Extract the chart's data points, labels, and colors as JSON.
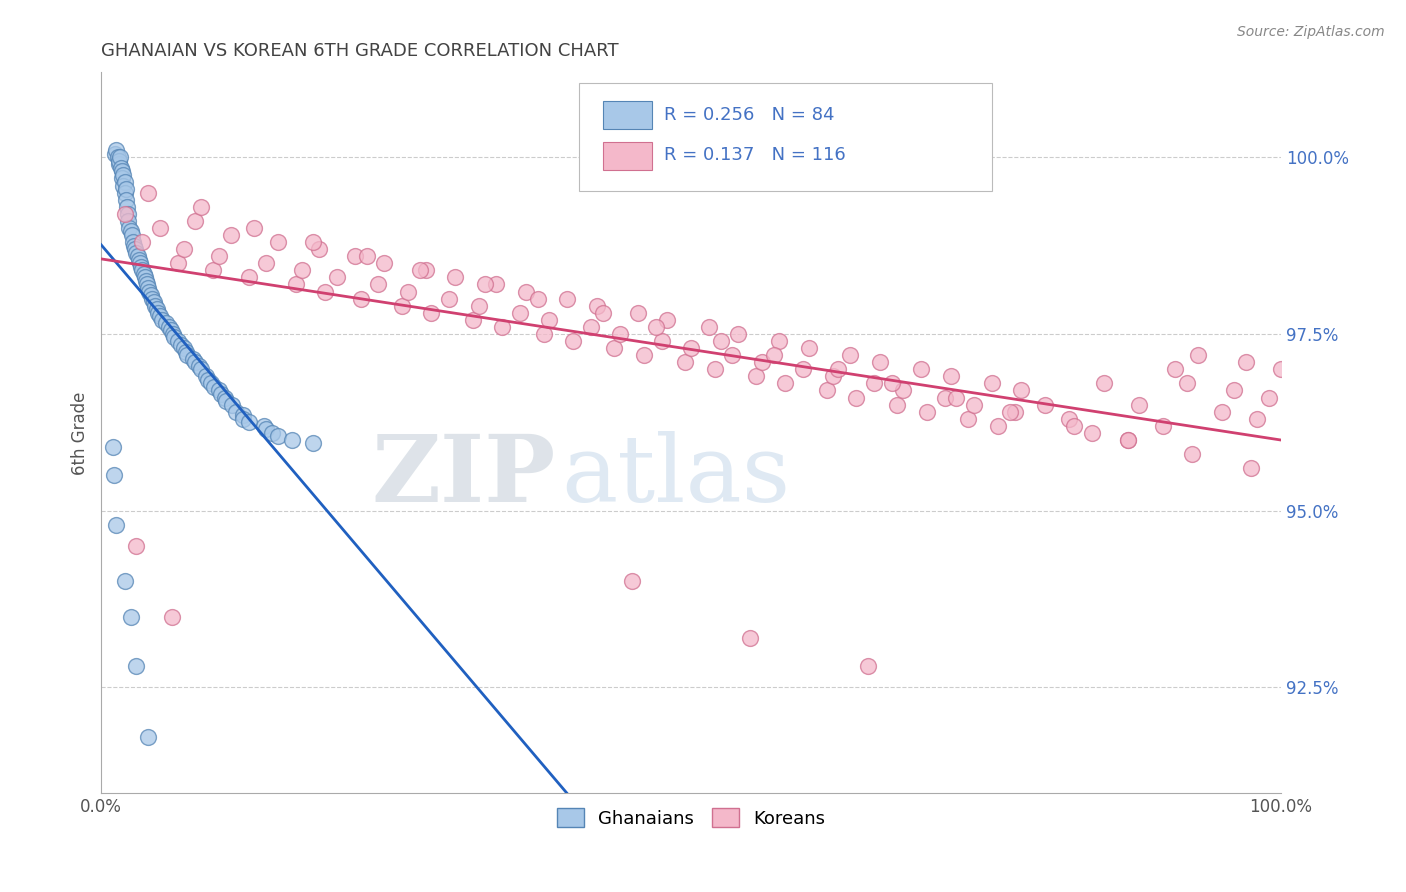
{
  "title": "GHANAIAN VS KOREAN 6TH GRADE CORRELATION CHART",
  "source": "Source: ZipAtlas.com",
  "ylabel": "6th Grade",
  "ytick_labels": [
    "92.5%",
    "95.0%",
    "97.5%",
    "100.0%"
  ],
  "ytick_values": [
    92.5,
    95.0,
    97.5,
    100.0
  ],
  "ymin": 91.0,
  "ymax": 101.2,
  "xmin": 0.0,
  "xmax": 100.0,
  "ghanaian_color": "#a8c8e8",
  "ghanaian_edge": "#5585b5",
  "korean_color": "#f4b8ca",
  "korean_edge": "#d07090",
  "ghanaian_R": 0.256,
  "ghanaian_N": 84,
  "korean_R": 0.137,
  "korean_N": 116,
  "legend_ghanaian": "Ghanaians",
  "legend_korean": "Koreans",
  "watermark_zip": "ZIP",
  "watermark_atlas": "atlas",
  "title_color": "#434343",
  "title_fontsize": 13,
  "ghanaian_x": [
    1.2,
    1.3,
    1.4,
    1.5,
    1.5,
    1.6,
    1.7,
    1.8,
    1.8,
    1.9,
    1.9,
    2.0,
    2.0,
    2.1,
    2.1,
    2.2,
    2.3,
    2.3,
    2.4,
    2.5,
    2.6,
    2.7,
    2.8,
    2.9,
    3.0,
    3.1,
    3.2,
    3.3,
    3.4,
    3.5,
    3.6,
    3.7,
    3.8,
    3.9,
    4.0,
    4.1,
    4.2,
    4.3,
    4.5,
    4.6,
    4.7,
    4.8,
    5.0,
    5.2,
    5.5,
    5.8,
    5.9,
    6.1,
    6.2,
    6.5,
    6.8,
    7.0,
    7.2,
    7.3,
    7.8,
    8.0,
    8.3,
    8.5,
    8.9,
    9.1,
    9.3,
    9.6,
    10.0,
    10.2,
    10.5,
    10.6,
    11.1,
    11.4,
    12.0,
    12.0,
    12.5,
    13.8,
    14.0,
    14.5,
    15.0,
    16.2,
    18.0,
    1.0,
    1.1,
    1.3,
    2.0,
    2.5,
    3.0,
    4.0
  ],
  "ghanaian_y": [
    100.05,
    100.1,
    100.0,
    99.9,
    99.95,
    100.0,
    99.85,
    99.8,
    99.7,
    99.75,
    99.6,
    99.65,
    99.5,
    99.55,
    99.4,
    99.3,
    99.2,
    99.1,
    99.0,
    98.95,
    98.9,
    98.8,
    98.75,
    98.7,
    98.65,
    98.6,
    98.55,
    98.5,
    98.45,
    98.4,
    98.35,
    98.3,
    98.25,
    98.2,
    98.15,
    98.1,
    98.05,
    98.0,
    97.95,
    97.9,
    97.85,
    97.8,
    97.75,
    97.7,
    97.65,
    97.6,
    97.55,
    97.5,
    97.45,
    97.4,
    97.35,
    97.3,
    97.25,
    97.2,
    97.15,
    97.1,
    97.05,
    97.0,
    96.9,
    96.85,
    96.8,
    96.75,
    96.7,
    96.65,
    96.6,
    96.55,
    96.5,
    96.4,
    96.35,
    96.3,
    96.25,
    96.2,
    96.15,
    96.1,
    96.05,
    96.0,
    95.95,
    95.9,
    95.5,
    94.8,
    94.0,
    93.5,
    92.8,
    91.8
  ],
  "korean_x": [
    2.0,
    3.5,
    5.0,
    6.5,
    7.0,
    8.0,
    9.5,
    10.0,
    11.0,
    12.5,
    14.0,
    15.0,
    16.5,
    17.0,
    18.5,
    19.0,
    20.0,
    21.5,
    22.0,
    23.5,
    24.0,
    25.5,
    26.0,
    27.5,
    28.0,
    29.5,
    30.0,
    31.5,
    32.0,
    33.5,
    34.0,
    35.5,
    36.0,
    37.5,
    38.0,
    39.5,
    40.0,
    41.5,
    42.0,
    43.5,
    44.0,
    45.5,
    46.0,
    47.5,
    48.0,
    49.5,
    50.0,
    51.5,
    52.0,
    53.5,
    54.0,
    55.5,
    56.0,
    57.5,
    58.0,
    59.5,
    60.0,
    61.5,
    62.0,
    63.5,
    64.0,
    65.5,
    66.0,
    67.5,
    68.0,
    69.5,
    70.0,
    71.5,
    72.0,
    73.5,
    74.0,
    75.5,
    76.0,
    77.5,
    78.0,
    80.0,
    82.0,
    84.0,
    85.0,
    87.0,
    88.0,
    90.0,
    91.0,
    92.0,
    93.0,
    95.0,
    96.0,
    97.0,
    98.0,
    99.0,
    100.0,
    4.0,
    8.5,
    13.0,
    18.0,
    22.5,
    27.0,
    32.5,
    37.0,
    42.5,
    47.0,
    52.5,
    57.0,
    62.5,
    67.0,
    72.5,
    77.0,
    82.5,
    87.0,
    92.5,
    97.5,
    3.0,
    6.0,
    45.0,
    55.0,
    65.0
  ],
  "korean_y": [
    99.2,
    98.8,
    99.0,
    98.5,
    98.7,
    99.1,
    98.4,
    98.6,
    98.9,
    98.3,
    98.5,
    98.8,
    98.2,
    98.4,
    98.7,
    98.1,
    98.3,
    98.6,
    98.0,
    98.2,
    98.5,
    97.9,
    98.1,
    98.4,
    97.8,
    98.0,
    98.3,
    97.7,
    97.9,
    98.2,
    97.6,
    97.8,
    98.1,
    97.5,
    97.7,
    98.0,
    97.4,
    97.6,
    97.9,
    97.3,
    97.5,
    97.8,
    97.2,
    97.4,
    97.7,
    97.1,
    97.3,
    97.6,
    97.0,
    97.2,
    97.5,
    96.9,
    97.1,
    97.4,
    96.8,
    97.0,
    97.3,
    96.7,
    96.9,
    97.2,
    96.6,
    96.8,
    97.1,
    96.5,
    96.7,
    97.0,
    96.4,
    96.6,
    96.9,
    96.3,
    96.5,
    96.8,
    96.2,
    96.4,
    96.7,
    96.5,
    96.3,
    96.1,
    96.8,
    96.0,
    96.5,
    96.2,
    97.0,
    96.8,
    97.2,
    96.4,
    96.7,
    97.1,
    96.3,
    96.6,
    97.0,
    99.5,
    99.3,
    99.0,
    98.8,
    98.6,
    98.4,
    98.2,
    98.0,
    97.8,
    97.6,
    97.4,
    97.2,
    97.0,
    96.8,
    96.6,
    96.4,
    96.2,
    96.0,
    95.8,
    95.6,
    94.5,
    93.5,
    94.0,
    93.2,
    92.8
  ]
}
